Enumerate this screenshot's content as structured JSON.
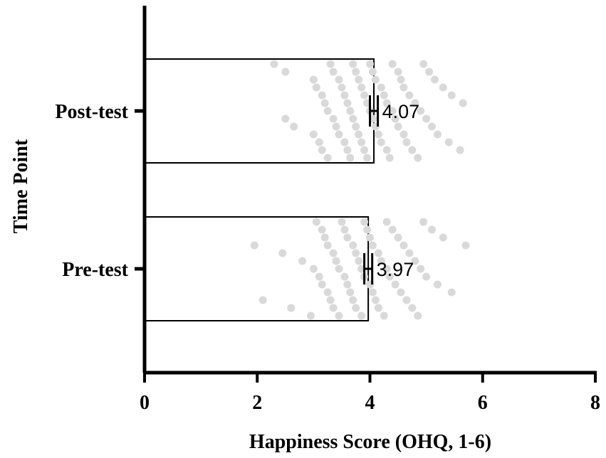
{
  "chart_data": {
    "type": "bar",
    "orientation": "horizontal",
    "xlabel": "Happiness Score (OHQ, 1-6)",
    "ylabel": "Time Point",
    "xlim": [
      0,
      8
    ],
    "xticks": [
      "0",
      "2",
      "4",
      "6",
      "8"
    ],
    "categories": [
      "Post-test",
      "Pre-test"
    ],
    "values": [
      4.07,
      3.97
    ],
    "value_labels": [
      "4.07",
      "3.97"
    ],
    "error_half_width": [
      0.07,
      0.07
    ],
    "grid": false,
    "colors": {
      "bar_fill": "#ffffff",
      "bar_edge": "#000000",
      "points": "#d9d9d9",
      "axis": "#000000"
    },
    "points": {
      "Post-test": [
        2.3,
        2.5,
        2.5,
        2.65,
        3.0,
        3.0,
        3.05,
        3.1,
        3.15,
        3.15,
        3.2,
        3.25,
        3.25,
        3.3,
        3.35,
        3.35,
        3.4,
        3.45,
        3.45,
        3.5,
        3.55,
        3.55,
        3.6,
        3.6,
        3.65,
        3.65,
        3.7,
        3.7,
        3.75,
        3.75,
        3.8,
        3.8,
        3.85,
        3.85,
        3.9,
        3.9,
        3.95,
        3.95,
        4.0,
        4.0,
        4.05,
        4.05,
        4.1,
        4.1,
        4.15,
        4.2,
        4.2,
        4.25,
        4.3,
        4.3,
        4.35,
        4.4,
        4.4,
        4.45,
        4.5,
        4.5,
        4.55,
        4.6,
        4.6,
        4.65,
        4.7,
        4.75,
        4.8,
        4.85,
        4.9,
        4.95,
        5.0,
        5.05,
        5.1,
        5.15,
        5.2,
        5.3,
        5.4,
        5.45,
        5.6,
        5.65
      ],
      "Pre-test": [
        1.95,
        2.1,
        2.45,
        2.6,
        2.8,
        2.95,
        3.0,
        3.05,
        3.1,
        3.15,
        3.15,
        3.2,
        3.25,
        3.25,
        3.3,
        3.35,
        3.35,
        3.4,
        3.45,
        3.45,
        3.5,
        3.55,
        3.55,
        3.6,
        3.6,
        3.65,
        3.7,
        3.7,
        3.75,
        3.75,
        3.8,
        3.85,
        3.85,
        3.9,
        3.9,
        3.95,
        4.0,
        4.0,
        4.05,
        4.05,
        4.1,
        4.15,
        4.15,
        4.2,
        4.25,
        4.3,
        4.3,
        4.35,
        4.4,
        4.45,
        4.5,
        4.55,
        4.6,
        4.65,
        4.7,
        4.75,
        4.8,
        4.85,
        4.9,
        4.95,
        5.0,
        5.1,
        5.2,
        5.3,
        5.45,
        5.7
      ]
    }
  }
}
